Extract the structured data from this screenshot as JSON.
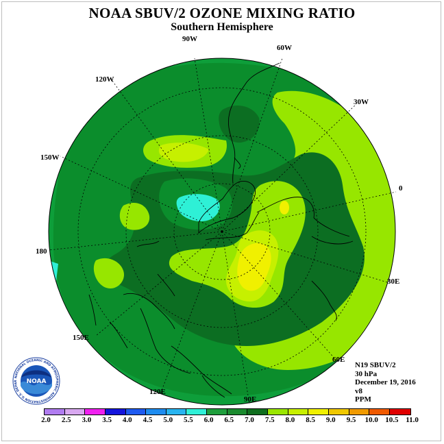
{
  "header": {
    "title": "NOAA SBUV/2 OZONE MIXING RATIO",
    "subtitle": "Southern Hemisphere"
  },
  "longitude_labels": {
    "lon_90w": "90W",
    "lon_60w": "60W",
    "lon_30w": "30W",
    "lon_0": "0",
    "lon_30e": "30E",
    "lon_60e": "60E",
    "lon_90e": "90E",
    "lon_120e": "120E",
    "lon_150e": "150E",
    "lon_180": "180",
    "lon_150w": "150W",
    "lon_120w": "120W"
  },
  "info": {
    "satellite": "N19 SBUV/2",
    "pressure": "30 hPa",
    "date": "December 19, 2016",
    "version": "v8",
    "units": "PPM"
  },
  "logo": {
    "text": "NOAA",
    "ring_text": "NATIONAL OCEANIC AND ATMOSPHERIC ADMINISTRATION U.S. DEPARTMENT OF COMMERCE"
  },
  "colorbar": {
    "ticks": [
      "2.0",
      "2.5",
      "3.0",
      "3.5",
      "4.0",
      "4.5",
      "5.0",
      "5.5",
      "6.0",
      "6.5",
      "7.0",
      "7.5",
      "8.0",
      "8.5",
      "9.0",
      "9.5",
      "10.0",
      "10.5",
      "11.0"
    ],
    "colors": [
      "#b07cf0",
      "#d8a8f0",
      "#f020f0",
      "#1414dc",
      "#1e5af0",
      "#1e8cf0",
      "#28b4f0",
      "#30f0d8",
      "#1e9e3c",
      "#1a8a2e",
      "#0f6e1e",
      "#9ae600",
      "#c8f000",
      "#f0f000",
      "#f0c800",
      "#f09a00",
      "#f05a00",
      "#e00000",
      "#8c5a3c"
    ]
  },
  "map_colors": {
    "level_6_0": "#0e9e3a",
    "level_6_5": "#0b8d2c",
    "level_7_0": "#0c6e22",
    "level_7_5": "#97e600",
    "level_8_0": "#c6f000",
    "level_8_5": "#f0f000",
    "level_5_5": "#2ef0d6"
  }
}
